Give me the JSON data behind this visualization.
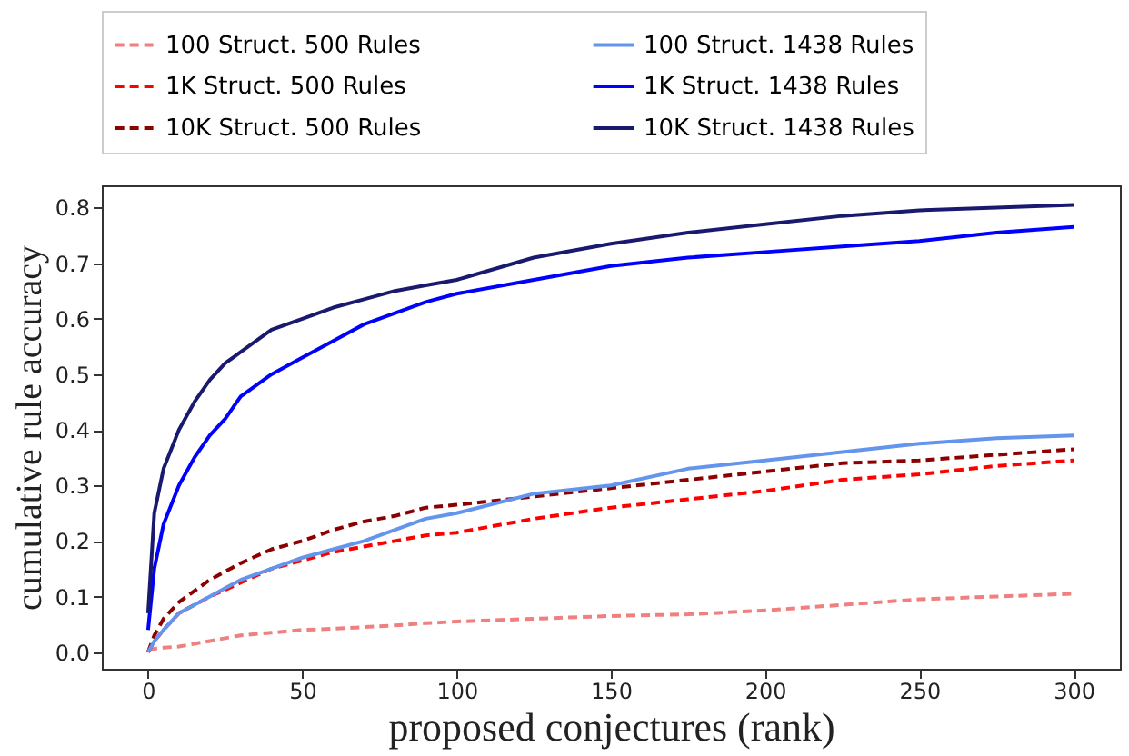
{
  "chart_data": {
    "type": "line",
    "xlabel": "proposed conjectures (rank)",
    "ylabel": "cumulative rule accuracy",
    "xlim": [
      -15,
      315
    ],
    "xticks": [
      0,
      50,
      100,
      150,
      200,
      250,
      300
    ],
    "ylim": [
      -0.03,
      0.84
    ],
    "yticks": [
      {
        "value": 0,
        "label": "0.0"
      },
      0.1,
      0.2,
      0.3,
      0.4,
      0.5,
      0.6,
      0.7,
      0.8
    ],
    "legend": "top",
    "grid": false,
    "marker": "none",
    "line_style": "solid",
    "x": [
      0,
      2,
      5,
      10,
      15,
      20,
      25,
      30,
      40,
      50,
      60,
      70,
      80,
      90,
      100,
      125,
      150,
      175,
      200,
      225,
      250,
      275,
      300
    ],
    "series": [
      {
        "name": "100 Struct. 500 Rules",
        "color": "#f08080",
        "line_style": "dashed",
        "values": [
          0.005,
          0.006,
          0.008,
          0.01,
          0.015,
          0.02,
          0.025,
          0.03,
          0.035,
          0.04,
          0.042,
          0.045,
          0.048,
          0.052,
          0.055,
          0.06,
          0.065,
          0.068,
          0.075,
          0.085,
          0.095,
          0.1,
          0.105
        ]
      },
      {
        "name": "1K  Struct. 500 Rules",
        "color": "#ff0000",
        "line_style": "dashed",
        "values": [
          0,
          0.02,
          0.04,
          0.07,
          0.085,
          0.1,
          0.112,
          0.125,
          0.15,
          0.165,
          0.18,
          0.19,
          0.2,
          0.21,
          0.215,
          0.24,
          0.26,
          0.275,
          0.29,
          0.31,
          0.32,
          0.335,
          0.345
        ]
      },
      {
        "name": "10K Struct. 500 Rules",
        "color": "#8b0000",
        "line_style": "dashed",
        "values": [
          0,
          0.03,
          0.06,
          0.09,
          0.11,
          0.13,
          0.145,
          0.16,
          0.185,
          0.2,
          0.22,
          0.235,
          0.245,
          0.26,
          0.265,
          0.28,
          0.295,
          0.31,
          0.325,
          0.34,
          0.345,
          0.355,
          0.365
        ]
      },
      {
        "name": "100 Struct. 1438 Rules",
        "color": "#6495ed",
        "values": [
          0,
          0.02,
          0.04,
          0.07,
          0.085,
          0.1,
          0.115,
          0.13,
          0.15,
          0.17,
          0.185,
          0.2,
          0.22,
          0.24,
          0.25,
          0.285,
          0.3,
          0.33,
          0.345,
          0.36,
          0.375,
          0.385,
          0.39
        ]
      },
      {
        "name": "1K  Struct. 1438 Rules",
        "color": "#0000ff",
        "values": [
          0.04,
          0.15,
          0.23,
          0.3,
          0.35,
          0.39,
          0.42,
          0.46,
          0.5,
          0.53,
          0.56,
          0.59,
          0.61,
          0.63,
          0.645,
          0.67,
          0.695,
          0.71,
          0.72,
          0.73,
          0.74,
          0.755,
          0.765
        ]
      },
      {
        "name": "10K Struct. 1438 Rules",
        "color": "#191970",
        "values": [
          0.07,
          0.25,
          0.33,
          0.4,
          0.45,
          0.49,
          0.52,
          0.54,
          0.58,
          0.6,
          0.62,
          0.635,
          0.65,
          0.66,
          0.67,
          0.71,
          0.735,
          0.755,
          0.77,
          0.785,
          0.795,
          0.8,
          0.805
        ]
      }
    ]
  }
}
